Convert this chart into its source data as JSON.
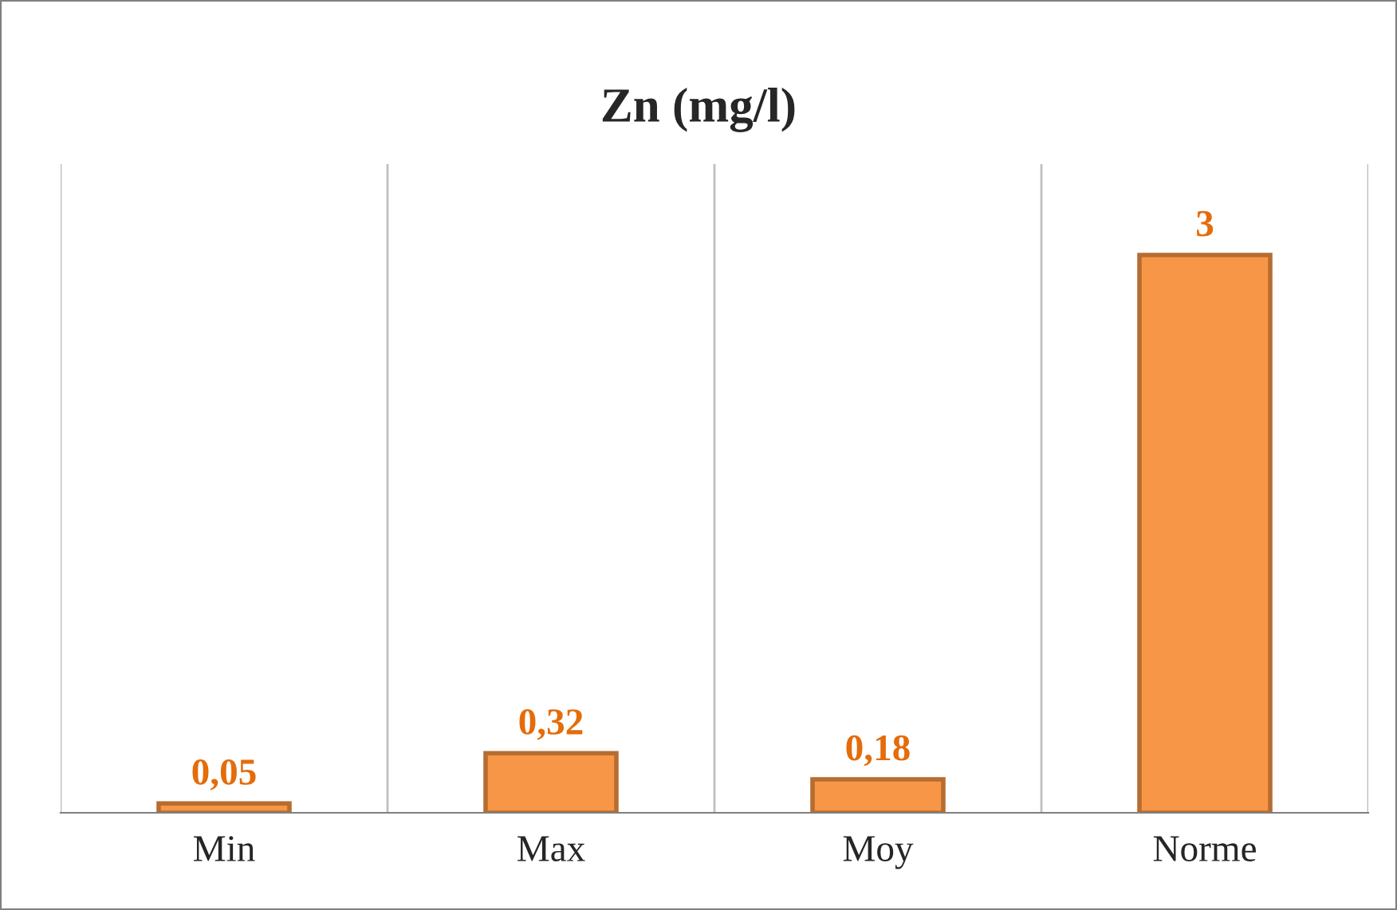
{
  "chart_data": {
    "type": "bar",
    "title": "Zn (mg/l)",
    "categories": [
      "Min",
      "Max",
      "Moy",
      "Norme"
    ],
    "values": [
      0.05,
      0.32,
      0.18,
      3
    ],
    "value_labels": [
      "0,05",
      "0,32",
      "0,18",
      "3"
    ],
    "colors": [
      "#f79646",
      "#f79646",
      "#f79646",
      "#f79646"
    ],
    "grid": "x"
  }
}
